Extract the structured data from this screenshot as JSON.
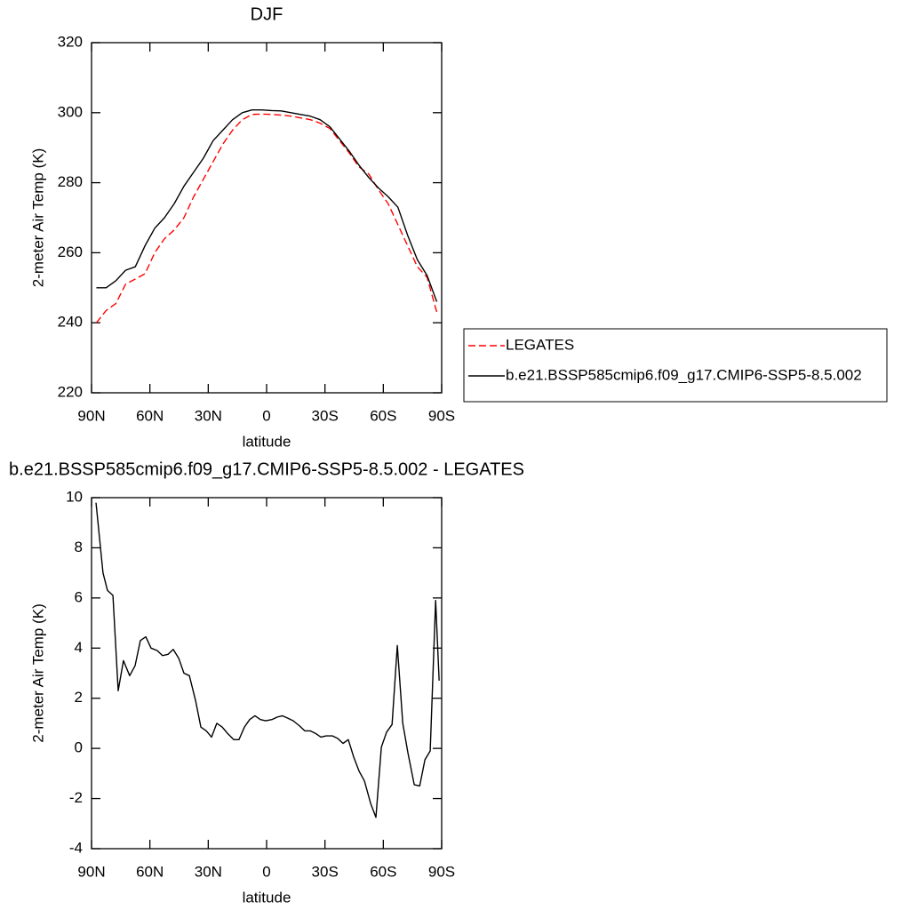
{
  "chart_data": [
    {
      "type": "line",
      "title": "DJF",
      "xlabel": "latitude",
      "ylabel": "2-meter Air Temp (K)",
      "x": [
        87.5,
        82.5,
        77.5,
        72.5,
        67.5,
        62.5,
        57.5,
        52.5,
        47.5,
        42.5,
        37.5,
        32.5,
        27.5,
        22.5,
        17.5,
        12.5,
        7.5,
        2.5,
        -2.5,
        -7.5,
        -12.5,
        -17.5,
        -22.5,
        -27.5,
        -32.5,
        -37.5,
        -42.5,
        -47.5,
        -52.5,
        -57.5,
        -62.5,
        -67.5,
        -72.5,
        -77.5,
        -82.5,
        -87.5
      ],
      "series": [
        {
          "name": "LEGATES",
          "color": "#ff0000",
          "line_style": "dashed",
          "values": [
            240,
            243.5,
            245.5,
            251,
            252.5,
            254,
            260,
            264,
            266.5,
            270,
            276,
            281,
            286,
            291,
            295,
            298,
            299.5,
            299.6,
            299.5,
            299.3,
            299,
            298.5,
            298,
            297,
            295.5,
            292,
            288.5,
            284.5,
            282.5,
            278,
            274,
            268,
            262,
            256,
            253,
            243
          ]
        },
        {
          "name": "b.e21.BSSP585cmip6.f09_g17.CMIP6-SSP5-8.5.002",
          "color": "#000000",
          "line_style": "solid",
          "values": [
            250,
            250,
            252,
            255,
            256,
            262,
            267,
            270,
            274,
            279,
            283,
            287,
            292,
            295,
            298,
            300,
            300.8,
            300.8,
            300.6,
            300.5,
            300,
            299.5,
            299,
            298,
            296,
            292.5,
            289,
            285,
            281.5,
            278.5,
            276,
            273,
            265,
            258,
            253.5,
            246
          ]
        }
      ],
      "xlim": [
        90,
        -90
      ],
      "ylim": [
        220,
        320
      ],
      "xticks": [
        {
          "value": 90,
          "label": "90N"
        },
        {
          "value": 60,
          "label": "60N"
        },
        {
          "value": 30,
          "label": "30N"
        },
        0,
        {
          "value": -30,
          "label": "30S"
        },
        {
          "value": -60,
          "label": "60S"
        },
        {
          "value": -90,
          "label": "90S"
        }
      ],
      "yticks": [
        220,
        240,
        260,
        280,
        300,
        320
      ],
      "legend": "right"
    },
    {
      "type": "line",
      "title": "b.e21.BSSP585cmip6.f09_g17.CMIP6-SSP5-8.5.002 - LEGATES",
      "xlabel": "latitude",
      "ylabel": "2-meter Air Temp (K)",
      "x": [
        87.7,
        84.1,
        81.8,
        79,
        76.3,
        73.6,
        70.4,
        67.6,
        64.9,
        62.1,
        59.4,
        56.2,
        53.5,
        50.7,
        48,
        45.2,
        42.5,
        39.7,
        36.5,
        33.8,
        31,
        28.3,
        25.6,
        22.8,
        20.1,
        16.9,
        14.2,
        11.4,
        8.7,
        6,
        3.2,
        0.5,
        -2.7,
        -5.5,
        -8.2,
        -11,
        -13.7,
        -16.9,
        -19.6,
        -22.4,
        -25.1,
        -27.9,
        -30.6,
        -33.8,
        -36.5,
        -39.3,
        -42,
        -44.8,
        -47.5,
        -50.3,
        -53.5,
        -56.2,
        -59,
        -61.7,
        -64.5,
        -67.2,
        -70,
        -72.7,
        -75.9,
        -78.7,
        -81.4,
        -84.1,
        -86.9,
        -88.7
      ],
      "series": [
        {
          "color": "#000000",
          "line_style": "solid",
          "values": [
            9.8,
            7.0,
            6.3,
            6.1,
            2.3,
            3.5,
            2.9,
            3.3,
            4.3,
            4.45,
            4.0,
            3.9,
            3.7,
            3.75,
            3.95,
            3.6,
            3.0,
            2.9,
            1.9,
            0.85,
            0.7,
            0.45,
            1.0,
            0.85,
            0.6,
            0.35,
            0.35,
            0.85,
            1.15,
            1.3,
            1.15,
            1.1,
            1.15,
            1.25,
            1.3,
            1.2,
            1.1,
            0.9,
            0.7,
            0.7,
            0.6,
            0.45,
            0.5,
            0.5,
            0.4,
            0.2,
            0.35,
            -0.35,
            -0.9,
            -1.3,
            -2.2,
            -2.75,
            0.05,
            0.65,
            0.95,
            4.1,
            1.0,
            -0.2,
            -1.45,
            -1.5,
            -0.45,
            -0.1,
            5.9,
            2.7
          ]
        }
      ],
      "xlim": [
        90,
        -90
      ],
      "ylim": [
        -4,
        10
      ],
      "xticks": [
        {
          "value": 90,
          "label": "90N"
        },
        {
          "value": 60,
          "label": "60N"
        },
        {
          "value": 30,
          "label": "30N"
        },
        0,
        {
          "value": -30,
          "label": "30S"
        },
        {
          "value": -60,
          "label": "60S"
        },
        {
          "value": -90,
          "label": "90S"
        }
      ],
      "yticks": [
        -4,
        -2,
        0,
        2,
        4,
        6,
        8,
        10
      ]
    }
  ]
}
